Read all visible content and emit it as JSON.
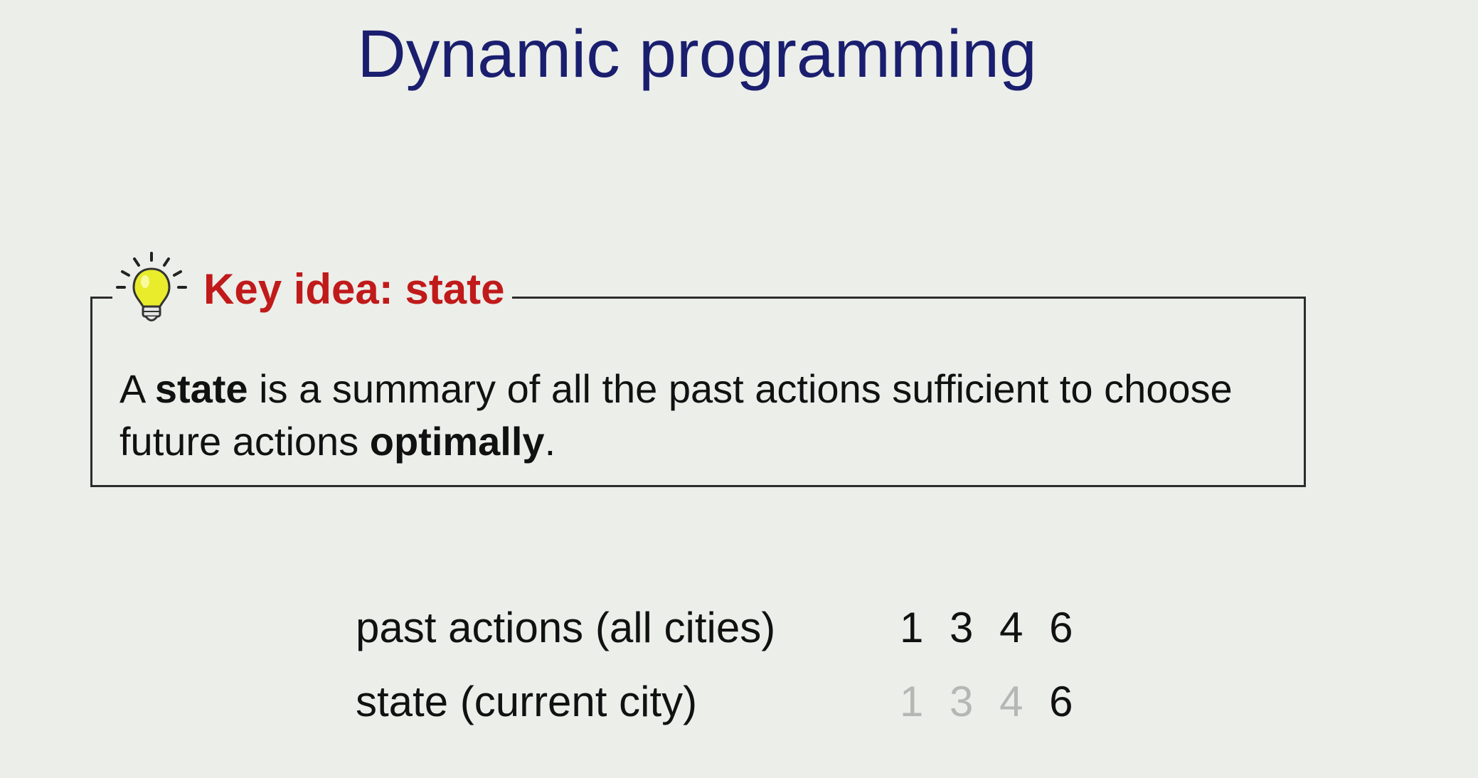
{
  "slide": {
    "title": "Dynamic programming"
  },
  "key_idea": {
    "icon": "lightbulb-icon",
    "label": "Key idea: state",
    "text": {
      "part1": "A ",
      "bold1": "state",
      "part2": " is a summary of all the past actions sufficient to choose future actions ",
      "bold2": "optimally",
      "part3": "."
    }
  },
  "rows": [
    {
      "label": "past actions (all cities)",
      "values": [
        "1",
        "3",
        "4",
        "6"
      ],
      "faded": [
        false,
        false,
        false,
        false
      ]
    },
    {
      "label": "state (current city)",
      "values": [
        "1",
        "3",
        "4",
        "6"
      ],
      "faded": [
        true,
        true,
        true,
        false
      ]
    }
  ],
  "colors": {
    "title": "#1a1e6e",
    "key_label": "#c01a1a",
    "faded_text": "#b5b7b4",
    "background": "#eceeea"
  }
}
